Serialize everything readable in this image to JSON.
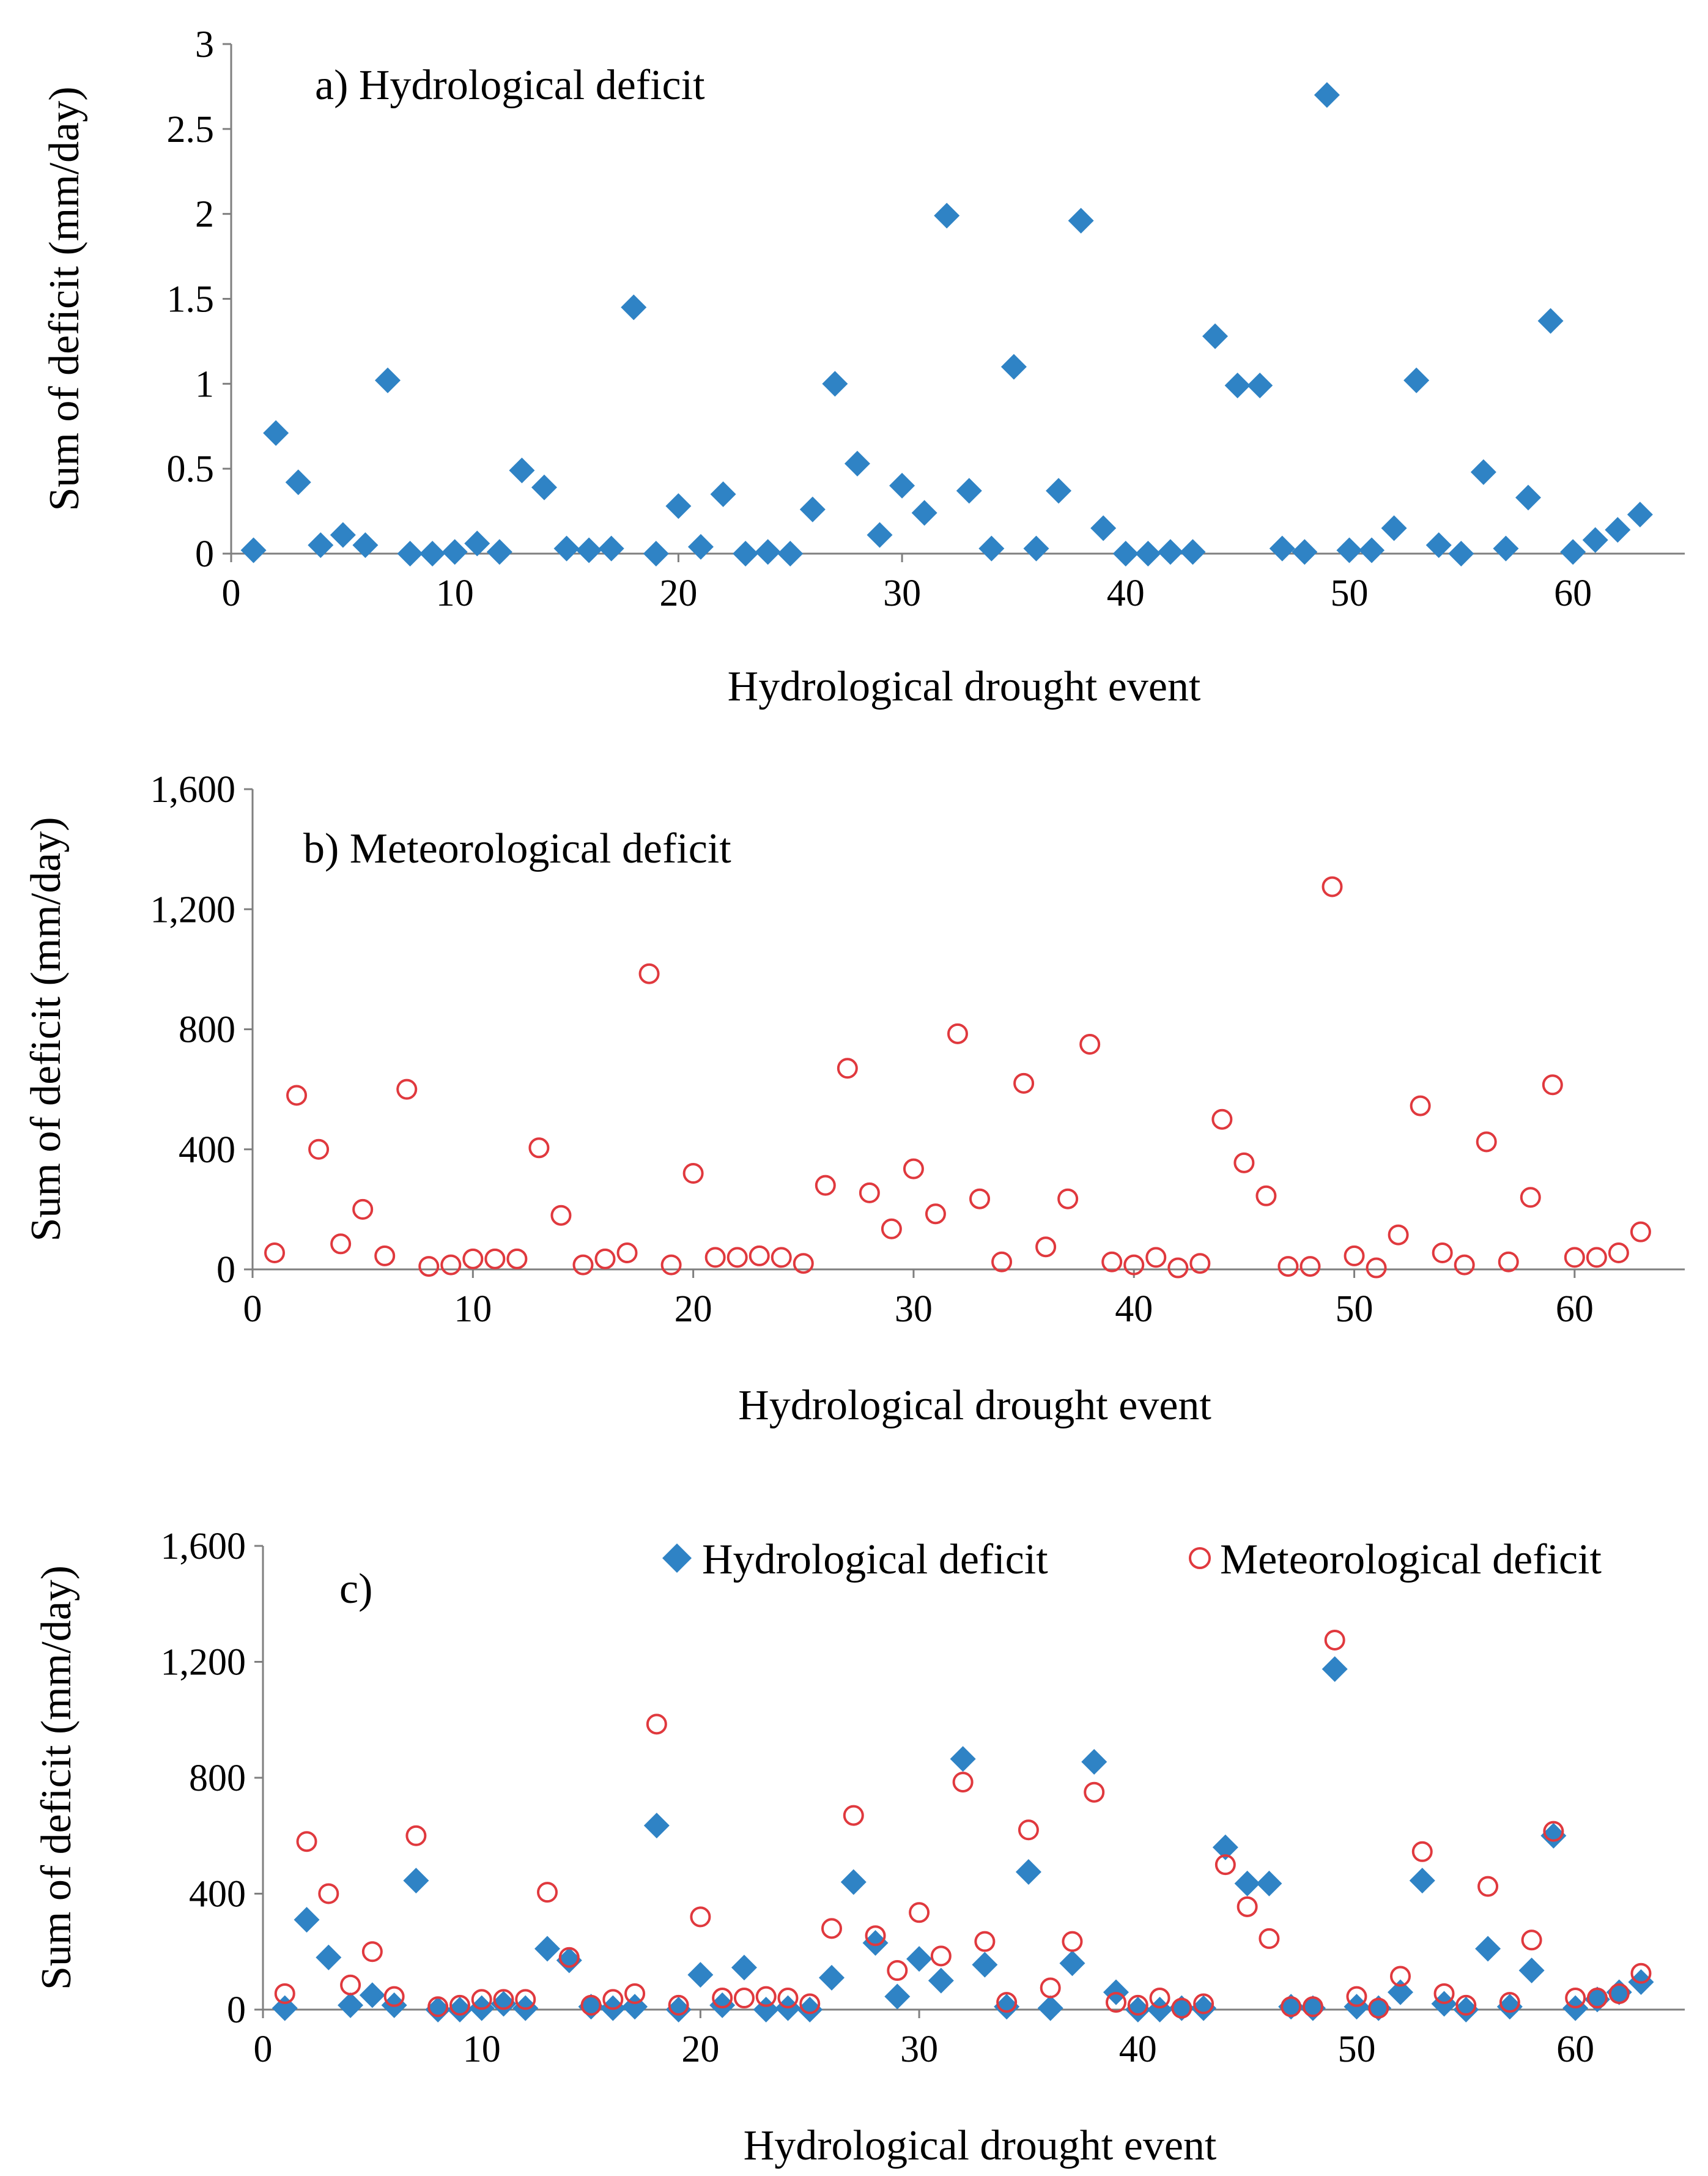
{
  "colors": {
    "hydro": "#2f83c5",
    "meteo": "#e0393e",
    "axis": "#7f7f7f"
  },
  "legend": {
    "hydro_label": "Hydrological deficit",
    "meteo_label": "Meteorological deficit"
  },
  "chart_data": [
    {
      "id": "a",
      "type": "scatter",
      "title": "a) Hydrological deficit",
      "xlabel": "Hydrological drought event",
      "ylabel": "Sum of deficit (mm/day)",
      "xlim": [
        0,
        65
      ],
      "ylim": [
        0,
        3
      ],
      "xticks": [
        0,
        10,
        20,
        30,
        40,
        50,
        60
      ],
      "yticks": [
        0,
        0.5,
        1,
        1.5,
        2,
        2.5,
        3
      ],
      "ytick_labels": [
        "0",
        "0.5",
        "1",
        "1.5",
        "2",
        "2.5",
        "3"
      ],
      "series": [
        {
          "name": "Hydrological deficit",
          "marker": "diamond",
          "x": [
            1,
            2,
            3,
            4,
            5,
            6,
            7,
            8,
            9,
            10,
            11,
            12,
            13,
            14,
            15,
            16,
            17,
            18,
            19,
            20,
            21,
            22,
            23,
            24,
            25,
            26,
            27,
            28,
            29,
            30,
            31,
            32,
            33,
            34,
            35,
            36,
            37,
            38,
            39,
            40,
            41,
            42,
            43,
            44,
            45,
            46,
            47,
            48,
            49,
            50,
            51,
            52,
            53,
            54,
            55,
            56,
            57,
            58,
            59,
            60,
            61,
            62,
            63
          ],
          "y": [
            0.02,
            0.71,
            0.42,
            0.05,
            0.11,
            0.05,
            1.02,
            0.0,
            0.0,
            0.01,
            0.06,
            0.01,
            0.49,
            0.39,
            0.03,
            0.02,
            0.03,
            1.45,
            0.0,
            0.28,
            0.04,
            0.35,
            0.0,
            0.01,
            0.0,
            0.26,
            1.0,
            0.53,
            0.11,
            0.4,
            0.24,
            1.99,
            0.37,
            0.03,
            1.1,
            0.03,
            0.37,
            1.96,
            0.15,
            0.0,
            0.0,
            0.01,
            0.01,
            1.28,
            0.99,
            0.99,
            0.03,
            0.01,
            2.7,
            0.02,
            0.02,
            0.15,
            1.02,
            0.05,
            0.0,
            0.48,
            0.03,
            0.33,
            1.37,
            0.01,
            0.08,
            0.14,
            0.23
          ]
        }
      ]
    },
    {
      "id": "b",
      "type": "scatter",
      "title": "b) Meteorological deficit",
      "xlabel": "Hydrological drought event",
      "ylabel": "Sum of deficit (mm/day)",
      "xlim": [
        0,
        65
      ],
      "ylim": [
        0,
        1600
      ],
      "xticks": [
        0,
        10,
        20,
        30,
        40,
        50,
        60
      ],
      "yticks": [
        0,
        400,
        800,
        1200,
        1600
      ],
      "ytick_labels": [
        "0",
        "400",
        "800",
        "1,200",
        "1,600"
      ],
      "series": [
        {
          "name": "Meteorological deficit",
          "marker": "circle",
          "x": [
            1,
            2,
            3,
            4,
            5,
            6,
            7,
            8,
            9,
            10,
            11,
            12,
            13,
            14,
            15,
            16,
            17,
            18,
            19,
            20,
            21,
            22,
            23,
            24,
            25,
            26,
            27,
            28,
            29,
            30,
            31,
            32,
            33,
            34,
            35,
            36,
            37,
            38,
            39,
            40,
            41,
            42,
            43,
            44,
            45,
            46,
            47,
            48,
            49,
            50,
            51,
            52,
            53,
            54,
            55,
            56,
            57,
            58,
            59,
            60,
            61,
            62,
            63
          ],
          "y": [
            55,
            580,
            400,
            85,
            200,
            45,
            600,
            10,
            15,
            35,
            35,
            35,
            405,
            180,
            15,
            35,
            55,
            985,
            15,
            320,
            40,
            40,
            45,
            40,
            20,
            280,
            670,
            255,
            135,
            335,
            185,
            785,
            235,
            25,
            620,
            75,
            235,
            750,
            25,
            15,
            40,
            5,
            20,
            500,
            355,
            245,
            10,
            10,
            1275,
            45,
            5,
            115,
            545,
            55,
            15,
            425,
            25,
            240,
            615,
            40,
            40,
            55,
            125
          ]
        }
      ]
    },
    {
      "id": "c",
      "type": "scatter",
      "title": "c)",
      "xlabel": "Hydrological drought event",
      "ylabel": "Sum of deficit (mm/day)",
      "xlim": [
        0,
        65
      ],
      "ylim": [
        0,
        1600
      ],
      "xticks": [
        0,
        10,
        20,
        30,
        40,
        50,
        60
      ],
      "yticks": [
        0,
        400,
        800,
        1200,
        1600
      ],
      "ytick_labels": [
        "0",
        "400",
        "800",
        "1,200",
        "1,600"
      ],
      "legend_position": "top-right",
      "series": [
        {
          "name": "Hydrological deficit",
          "marker": "diamond",
          "x": [
            1,
            2,
            3,
            4,
            5,
            6,
            7,
            8,
            9,
            10,
            11,
            12,
            13,
            14,
            15,
            16,
            17,
            18,
            19,
            20,
            21,
            22,
            23,
            24,
            25,
            26,
            27,
            28,
            29,
            30,
            31,
            32,
            33,
            34,
            35,
            36,
            37,
            38,
            39,
            40,
            41,
            42,
            43,
            44,
            45,
            46,
            47,
            48,
            49,
            50,
            51,
            52,
            53,
            54,
            55,
            56,
            57,
            58,
            59,
            60,
            61,
            62,
            63
          ],
          "y": [
            5,
            310,
            180,
            15,
            50,
            15,
            445,
            0,
            0,
            5,
            20,
            5,
            210,
            170,
            10,
            5,
            10,
            635,
            0,
            120,
            15,
            145,
            0,
            5,
            0,
            110,
            440,
            230,
            45,
            175,
            100,
            865,
            155,
            10,
            475,
            5,
            160,
            855,
            60,
            0,
            0,
            5,
            5,
            560,
            435,
            435,
            10,
            5,
            1175,
            10,
            5,
            60,
            445,
            20,
            0,
            210,
            10,
            135,
            600,
            5,
            35,
            60,
            95
          ]
        },
        {
          "name": "Meteorological deficit",
          "marker": "circle",
          "x": [
            1,
            2,
            3,
            4,
            5,
            6,
            7,
            8,
            9,
            10,
            11,
            12,
            13,
            14,
            15,
            16,
            17,
            18,
            19,
            20,
            21,
            22,
            23,
            24,
            25,
            26,
            27,
            28,
            29,
            30,
            31,
            32,
            33,
            34,
            35,
            36,
            37,
            38,
            39,
            40,
            41,
            42,
            43,
            44,
            45,
            46,
            47,
            48,
            49,
            50,
            51,
            52,
            53,
            54,
            55,
            56,
            57,
            58,
            59,
            60,
            61,
            62,
            63
          ],
          "y": [
            55,
            580,
            400,
            85,
            200,
            45,
            600,
            10,
            15,
            35,
            35,
            35,
            405,
            180,
            15,
            35,
            55,
            985,
            15,
            320,
            40,
            40,
            45,
            40,
            20,
            280,
            670,
            255,
            135,
            335,
            185,
            785,
            235,
            25,
            620,
            75,
            235,
            750,
            25,
            15,
            40,
            5,
            20,
            500,
            355,
            245,
            10,
            10,
            1275,
            45,
            5,
            115,
            545,
            55,
            15,
            425,
            25,
            240,
            615,
            40,
            40,
            55,
            125
          ]
        }
      ]
    }
  ]
}
